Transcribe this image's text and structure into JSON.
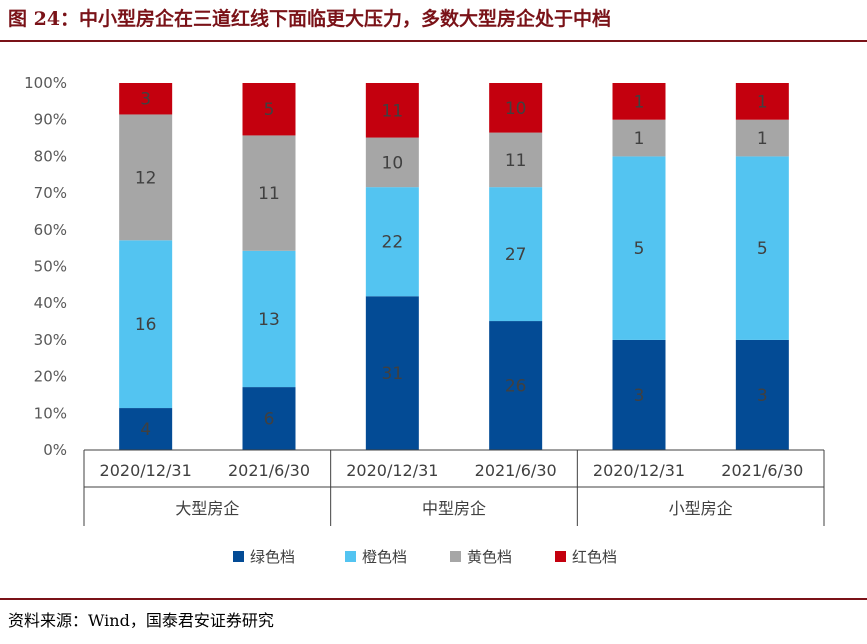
{
  "figure": {
    "title": "图 24：中小型房企在三道红线下面临更大压力，多数大型房企处于中档",
    "source": "资料来源：Wind，国泰君安证券研究"
  },
  "chart_data": {
    "type": "bar",
    "stacked": true,
    "normalized": true,
    "groups": [
      {
        "name": "大型房企",
        "categories": [
          "2020/12/31",
          "2021/6/30"
        ]
      },
      {
        "name": "中型房企",
        "categories": [
          "2020/12/31",
          "2021/6/30"
        ]
      },
      {
        "name": "小型房企",
        "categories": [
          "2020/12/31",
          "2021/6/30"
        ]
      }
    ],
    "categories": [
      "大型房企 2020/12/31",
      "大型房企 2021/6/30",
      "中型房企 2020/12/31",
      "中型房企 2021/6/30",
      "小型房企 2020/12/31",
      "小型房企 2021/6/30"
    ],
    "series": [
      {
        "name": "绿色档",
        "color": "#034b95",
        "values": [
          4,
          6,
          31,
          26,
          3,
          3
        ]
      },
      {
        "name": "橙色档",
        "color": "#53c4f1",
        "values": [
          16,
          13,
          22,
          27,
          5,
          5
        ]
      },
      {
        "name": "黄色档",
        "color": "#a6a6a6",
        "values": [
          12,
          11,
          10,
          11,
          1,
          1
        ]
      },
      {
        "name": "红色档",
        "color": "#c4000e",
        "values": [
          3,
          5,
          11,
          10,
          1,
          1
        ]
      }
    ],
    "yticks": [
      "0%",
      "10%",
      "20%",
      "30%",
      "40%",
      "50%",
      "60%",
      "70%",
      "80%",
      "90%",
      "100%"
    ],
    "ylim": [
      0,
      100
    ],
    "legend_position": "bottom"
  }
}
